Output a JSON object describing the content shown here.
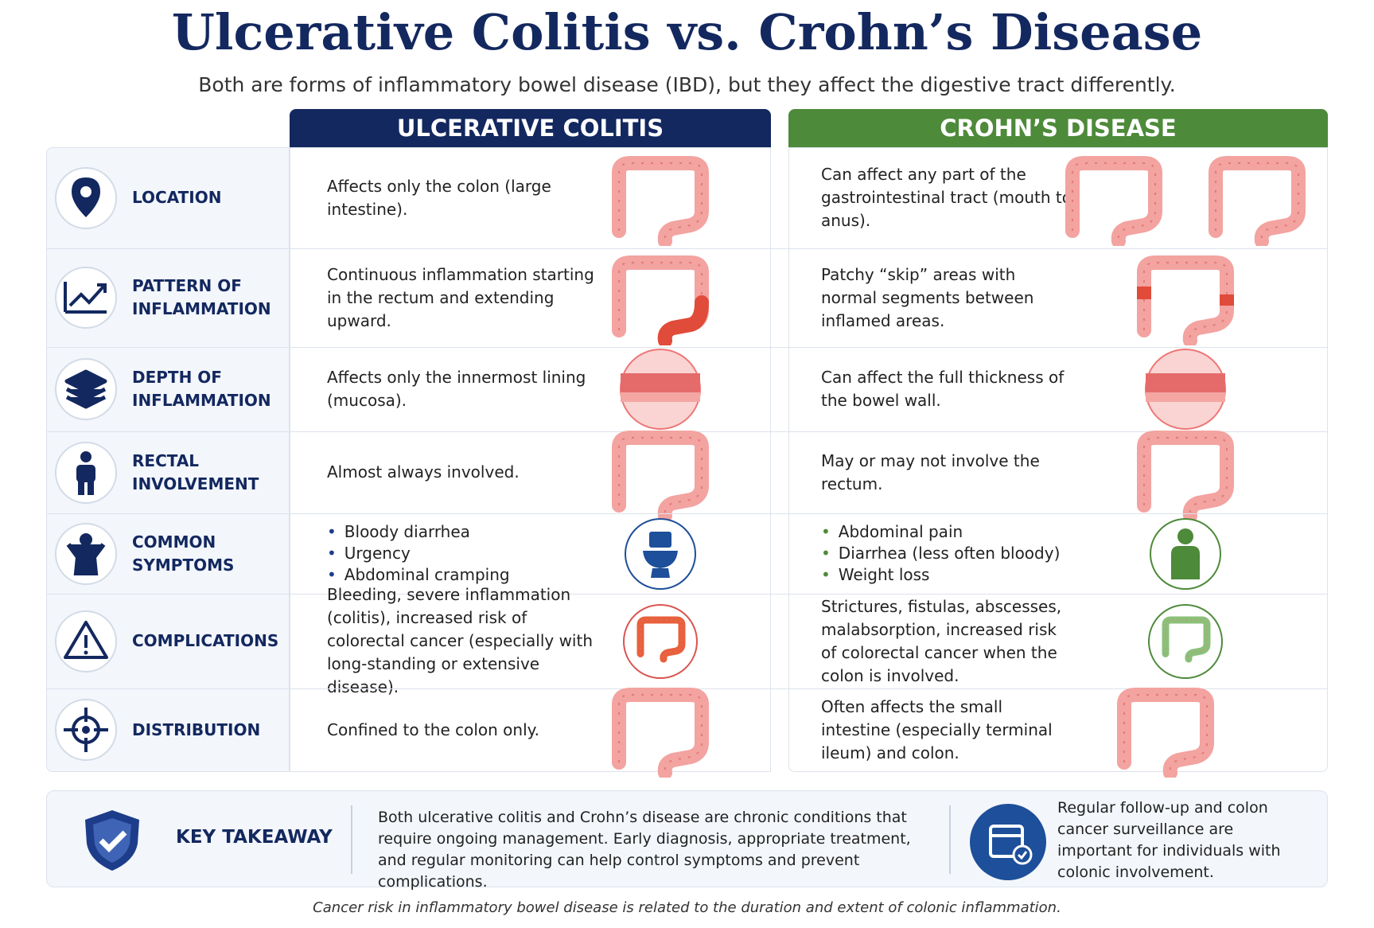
{
  "header": {
    "title": "Ulcerative Colitis vs. Crohn’s Disease",
    "subtitle": "Both are forms of inflammatory bowel disease (IBD), but they affect the digestive tract differently."
  },
  "columns": [
    "ULCERATIVE COLITIS",
    "CROHN’S DISEASE"
  ],
  "rows": [
    {
      "label": "LOCATION",
      "uc": "Affects only the colon (large intestine).",
      "cd": "Can affect any part of the gastrointestinal tract (mouth to anus)."
    },
    {
      "label": "PATTERN OF INFLAMMATION",
      "uc": "Continuous inflammation starting in the rectum and extending upward.",
      "cd": "Patchy “skip” areas with normal segments between inflamed areas."
    },
    {
      "label": "DEPTH OF INFLAMMATION",
      "uc": "Affects only the innermost lining (mucosa).",
      "cd": "Can affect the full thickness of the bowel wall."
    },
    {
      "label": "RECTAL INVOLVEMENT",
      "uc": "Almost always involved.",
      "cd": "May or may not involve the rectum."
    },
    {
      "label": "COMMON SYMPTOMS",
      "uc": [
        "Bloody diarrhea",
        "Urgency",
        "Abdominal cramping"
      ],
      "cd": [
        "Abdominal pain",
        "Diarrhea (less often bloody)",
        "Weight loss"
      ]
    },
    {
      "label": "COMPLICATIONS",
      "uc": "Bleeding, severe inflammation (colitis), increased risk of colorectal cancer (especially with long-standing or extensive disease).",
      "cd": "Strictures, fistulas, abscesses, malabsorption, increased risk of colorectal cancer when the colon is involved."
    },
    {
      "label": "DISTRIBUTION",
      "uc": "Confined to the colon only.",
      "cd": "Often affects the small intestine (especially terminal ileum) and colon."
    }
  ],
  "key_takeaway": {
    "label": "KEY TAKEAWAY",
    "text": "Both ulcerative colitis and Crohn’s disease are chronic conditions that require ongoing management. Early diagnosis, appropriate treatment, and regular monitoring can help control symptoms and prevent complications.",
    "note": "Regular follow-up and colon cancer surveillance are important for individuals with colonic involvement."
  },
  "footer": "Cancer risk in inflammatory bowel disease is related to the duration and extent of colonic inflammation."
}
